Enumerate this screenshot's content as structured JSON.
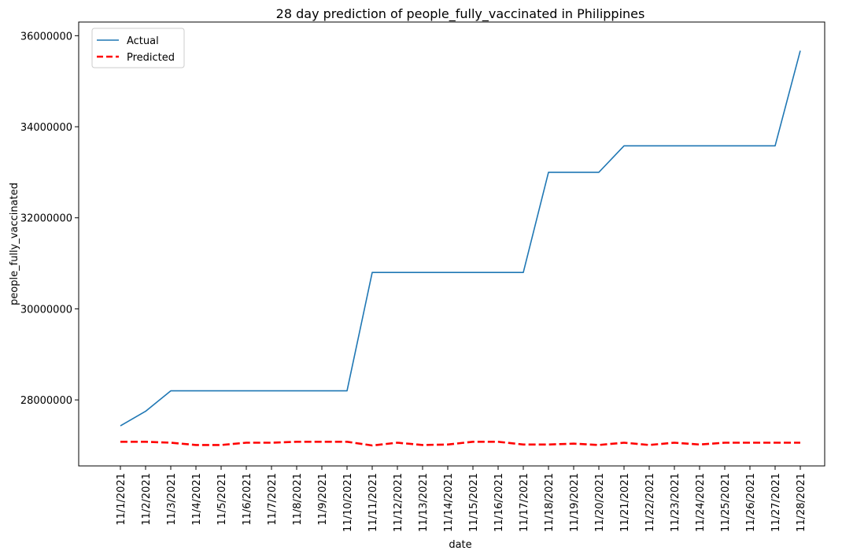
{
  "chart_data": {
    "type": "line",
    "title": "28 day prediction of people_fully_vaccinated in Philippines",
    "xlabel": "date",
    "ylabel": "people_fully_vaccinated",
    "x": [
      "11/1/2021",
      "11/2/2021",
      "11/3/2021",
      "11/4/2021",
      "11/5/2021",
      "11/6/2021",
      "11/7/2021",
      "11/8/2021",
      "11/9/2021",
      "11/10/2021",
      "11/11/2021",
      "11/12/2021",
      "11/13/2021",
      "11/14/2021",
      "11/15/2021",
      "11/16/2021",
      "11/17/2021",
      "11/18/2021",
      "11/19/2021",
      "11/20/2021",
      "11/21/2021",
      "11/22/2021",
      "11/23/2021",
      "11/24/2021",
      "11/25/2021",
      "11/26/2021",
      "11/27/2021",
      "11/28/2021"
    ],
    "ylim": [
      26550000,
      36300000
    ],
    "yticks": [
      28000000,
      30000000,
      32000000,
      34000000,
      36000000
    ],
    "ytick_labels": [
      "28000000",
      "30000000",
      "32000000",
      "34000000",
      "36000000"
    ],
    "grid": false,
    "legend_position": "top-left",
    "series": [
      {
        "name": "Actual",
        "color": "#1f77b4",
        "dash": "solid",
        "values": [
          27430000,
          27750000,
          28200000,
          28200000,
          28200000,
          28200000,
          28200000,
          28200000,
          28200000,
          28200000,
          30800000,
          30800000,
          30800000,
          30800000,
          30800000,
          30800000,
          30800000,
          33000000,
          33000000,
          33000000,
          33580000,
          33580000,
          33580000,
          33580000,
          33580000,
          33580000,
          33580000,
          35670000
        ]
      },
      {
        "name": "Predicted",
        "color": "#ff0000",
        "dash": "dashed",
        "values": [
          27080000,
          27080000,
          27060000,
          27010000,
          27010000,
          27060000,
          27060000,
          27080000,
          27080000,
          27080000,
          27000000,
          27060000,
          27010000,
          27020000,
          27080000,
          27080000,
          27020000,
          27020000,
          27040000,
          27010000,
          27060000,
          27010000,
          27060000,
          27020000,
          27060000,
          27060000,
          27060000,
          27060000
        ]
      }
    ]
  }
}
